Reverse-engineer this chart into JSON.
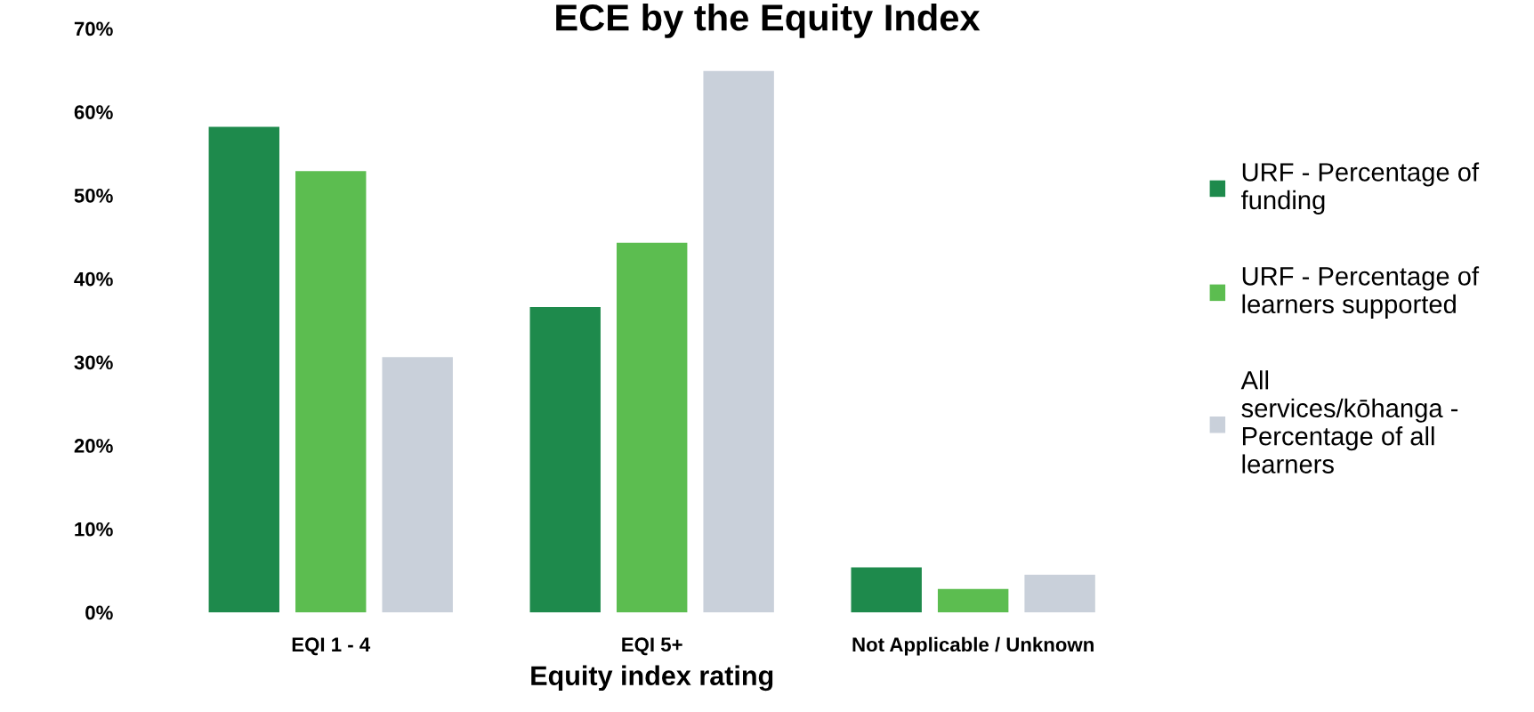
{
  "chart_data": {
    "type": "bar",
    "title": "ECE by the Equity Index",
    "xlabel": "Equity index rating",
    "categories": [
      "EQI 1 - 4",
      "EQI 5+",
      "Not Applicable / Unknown"
    ],
    "series": [
      {
        "name": "URF - Percentage of\nfunding",
        "color": "#1e8a4c",
        "values": [
          58.2,
          36.6,
          5.4
        ]
      },
      {
        "name": "URF - Percentage of\nlearners supported",
        "color": "#5cbd50",
        "values": [
          52.9,
          44.3,
          2.8
        ]
      },
      {
        "name": "All\nservices/kōhanga -\nPercentage of all\nlearners",
        "color": "#c9d0da",
        "values": [
          30.6,
          64.9,
          4.5
        ]
      }
    ],
    "ylim": [
      0,
      70
    ],
    "yticks": [
      {
        "value": 0,
        "label": "0%"
      },
      {
        "value": 10,
        "label": "10%"
      },
      {
        "value": 20,
        "label": "20%"
      },
      {
        "value": 30,
        "label": "30%"
      },
      {
        "value": 40,
        "label": "40%"
      },
      {
        "value": 50,
        "label": "50%"
      },
      {
        "value": 60,
        "label": "60%"
      },
      {
        "value": 70,
        "label": "70%"
      }
    ],
    "grid": false,
    "legend": "right"
  }
}
